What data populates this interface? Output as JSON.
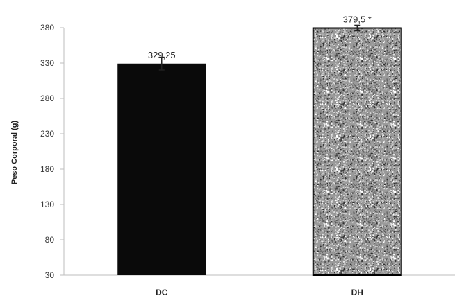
{
  "chart_data": {
    "type": "bar",
    "categories": [
      "DC",
      "DH"
    ],
    "values": [
      329.25,
      379.5
    ],
    "errors": [
      9,
      4
    ],
    "data_labels": [
      "329,25",
      "379,5"
    ],
    "significance": [
      "",
      "*"
    ],
    "bar_styles": [
      "solid",
      "speckled"
    ],
    "xlabel": "",
    "ylabel": "Peso Corporal (g)",
    "ylim": [
      30,
      380
    ],
    "yticks": [
      30,
      80,
      130,
      180,
      230,
      280,
      330,
      380
    ],
    "grid": false,
    "legend": "none",
    "colors": {
      "solid_bar": "#0a0a0a",
      "speckled_base": "#9a9a9a",
      "axis": "#bdbdbd",
      "error_bar": "#222222"
    }
  }
}
